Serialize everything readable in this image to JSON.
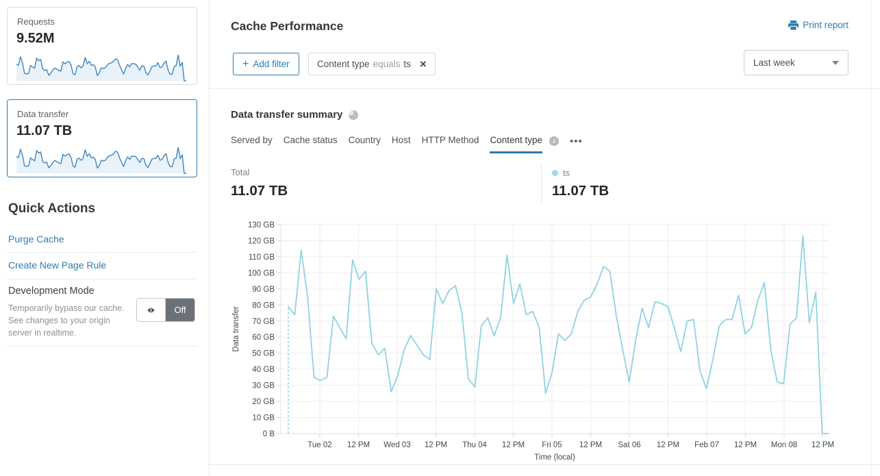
{
  "sidebar": {
    "requests_card": {
      "label": "Requests",
      "value": "9.52M"
    },
    "data_transfer_card": {
      "label": "Data transfer",
      "value": "11.07 TB"
    },
    "quick_actions": {
      "title": "Quick Actions",
      "links": [
        "Purge Cache",
        "Create New Page Rule"
      ],
      "dev_mode": {
        "title": "Development Mode",
        "description": "Temporarily bypass our cache. See changes to your origin server in realtime.",
        "toggle_state": "Off"
      }
    }
  },
  "header": {
    "title": "Cache Performance",
    "print_label": "Print report"
  },
  "filters": {
    "add_filter_label": "Add filter",
    "chip": {
      "field": "Content type",
      "operator": "equals",
      "value": "ts"
    },
    "time_range": "Last week"
  },
  "summary": {
    "title": "Data transfer summary",
    "tabs": [
      {
        "label": "Served by",
        "active": false
      },
      {
        "label": "Cache status",
        "active": false
      },
      {
        "label": "Country",
        "active": false
      },
      {
        "label": "Host",
        "active": false
      },
      {
        "label": "HTTP Method",
        "active": false
      },
      {
        "label": "Content type",
        "active": true
      }
    ],
    "total": {
      "label": "Total",
      "value": "11.07 TB"
    },
    "legend": {
      "name": "ts",
      "value": "11.07 TB"
    }
  },
  "icons": {
    "plus": "+",
    "close": "×",
    "more": "•••",
    "info": "i"
  },
  "colors": {
    "accent_blue": "#2c7cb0",
    "chart_line": "#8ed2e2",
    "spark_line": "#3e86bf",
    "spark_fill": "#e9f2f9",
    "toggle_off": "#6b7177"
  },
  "chart_data": {
    "type": "line",
    "title": "Data transfer summary",
    "xlabel": "Time (local)",
    "ylabel": "Data transfer",
    "ylim": [
      0,
      130
    ],
    "y_unit": "GB",
    "grid": true,
    "legend_position": "above-chart-right",
    "y_tick_labels": [
      "0 B",
      "10 GB",
      "20 GB",
      "30 GB",
      "40 GB",
      "50 GB",
      "60 GB",
      "70 GB",
      "80 GB",
      "90 GB",
      "100 GB",
      "110 GB",
      "120 GB",
      "130 GB"
    ],
    "x_tick_labels": [
      "Tue 02",
      "12 PM",
      "Wed 03",
      "12 PM",
      "Thu 04",
      "12 PM",
      "Fri 05",
      "12 PM",
      "Sat 06",
      "12 PM",
      "Feb 07",
      "12 PM",
      "Mon 08",
      "12 PM"
    ],
    "x_step_hours": 2,
    "series": [
      {
        "name": "ts",
        "color": "#8ed2e2",
        "total": "11.07 TB",
        "starts_with_dashed_riser": true,
        "values": [
          79,
          74,
          114,
          85,
          35,
          33,
          35,
          73,
          66,
          59,
          108,
          96,
          101,
          56,
          49,
          53,
          26,
          36,
          52,
          61,
          55,
          49,
          46,
          90,
          81,
          89,
          92,
          75,
          34,
          29,
          67,
          72,
          61,
          72,
          111,
          81,
          93,
          74,
          76,
          66,
          25,
          38,
          62,
          58,
          62,
          76,
          83,
          85,
          93,
          104,
          101,
          73,
          52,
          32,
          58,
          78,
          66,
          82,
          81,
          79,
          66,
          51,
          70,
          71,
          39,
          28,
          46,
          67,
          71,
          71,
          86,
          62,
          66,
          83,
          94,
          52,
          32,
          31,
          68,
          72,
          123,
          69,
          88,
          0,
          0
        ]
      }
    ]
  }
}
